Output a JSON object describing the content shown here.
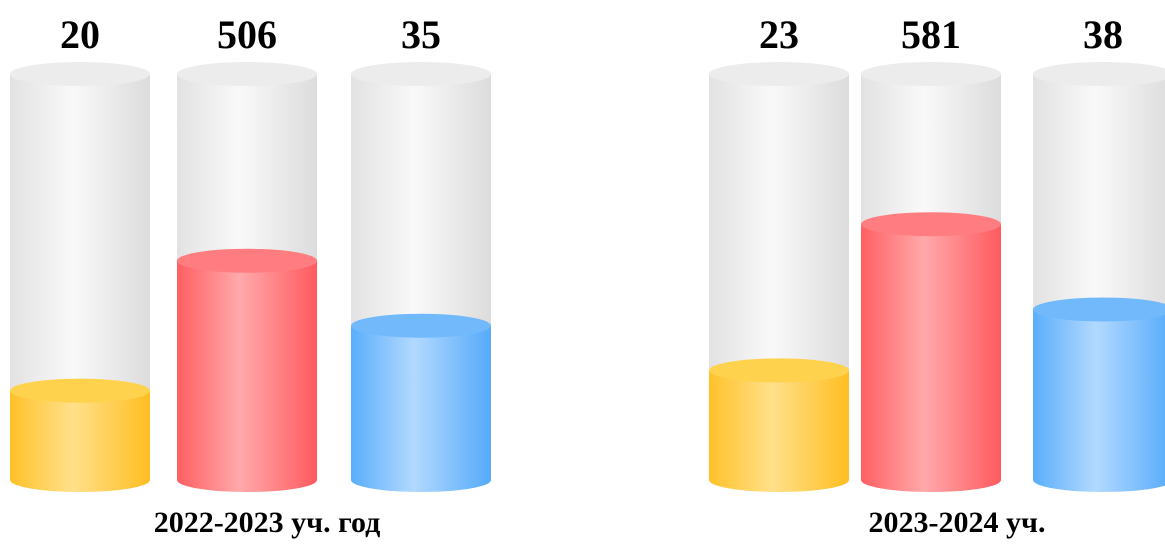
{
  "chart_data": {
    "type": "bar",
    "style": "3d-cylinder",
    "grid": false,
    "legend": "none",
    "groups": [
      {
        "label": "2022-2023 уч. год",
        "bars": [
          {
            "value_label": "20",
            "value": 20,
            "color": "#ffc93a"
          },
          {
            "value_label": "506",
            "value": 506,
            "color": "#ff6b6e"
          },
          {
            "value_label": "35",
            "value": 35,
            "color": "#5fb1fb"
          }
        ],
        "fill_fraction": [
          0.22,
          0.54,
          0.38
        ]
      },
      {
        "label": "2023-2024 уч.",
        "bars": [
          {
            "value_label": "23",
            "value": 23,
            "color": "#ffc93a"
          },
          {
            "value_label": "581",
            "value": 581,
            "color": "#ff6b6e"
          },
          {
            "value_label": "38",
            "value": 38,
            "color": "#5fb1fb"
          }
        ],
        "fill_fraction": [
          0.27,
          0.63,
          0.42
        ]
      }
    ]
  }
}
